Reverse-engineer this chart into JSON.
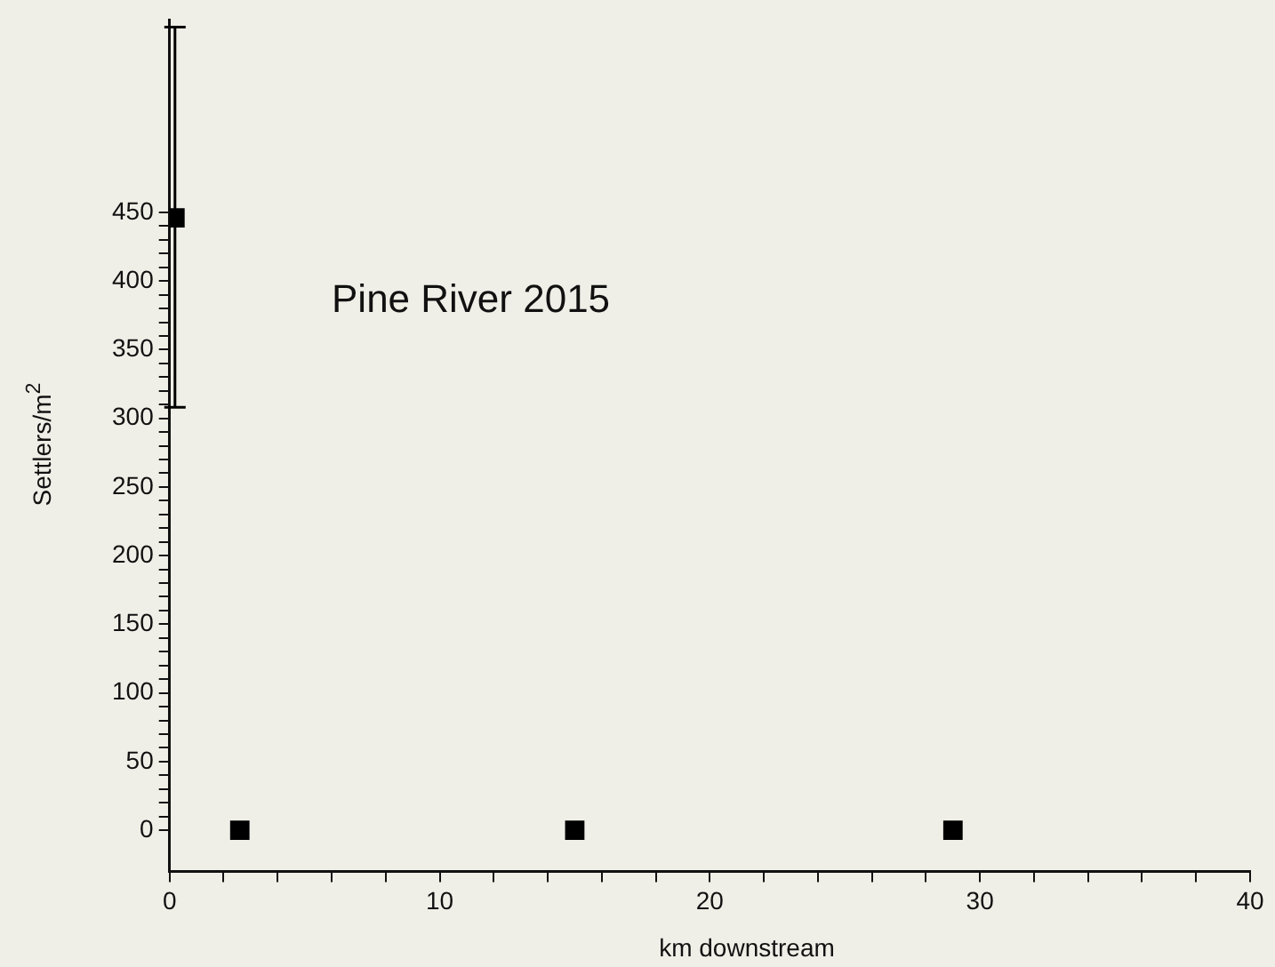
{
  "chart_data": {
    "type": "scatter",
    "xlabel": "km downstream",
    "ylabel": "Settlers/m$^{2}$",
    "annotations": [
      "Pine River 2015"
    ],
    "x": [
      0.2,
      2.6,
      15,
      29
    ],
    "series": [
      {
        "color": "#000000",
        "values": [
          446,
          0,
          0,
          0
        ],
        "errors": [
          [
            308,
            585
          ],
          null,
          null,
          null
        ]
      }
    ],
    "marker": "square",
    "grid": false,
    "legend": false,
    "xlim": [
      0,
      40
    ],
    "xticks": [
      0,
      {
        "value": 2,
        "label": null
      },
      {
        "value": 4,
        "label": null
      },
      {
        "value": 6,
        "label": null
      },
      {
        "value": 8,
        "label": null
      },
      10,
      {
        "value": 12,
        "label": null
      },
      {
        "value": 14,
        "label": null
      },
      {
        "value": 16,
        "label": null
      },
      {
        "value": 18,
        "label": null
      },
      20,
      {
        "value": 22,
        "label": null
      },
      {
        "value": 24,
        "label": null
      },
      {
        "value": 26,
        "label": null
      },
      {
        "value": 28,
        "label": null
      },
      30,
      {
        "value": 32,
        "label": null
      },
      {
        "value": 34,
        "label": null
      },
      {
        "value": 36,
        "label": null
      },
      {
        "value": 38,
        "label": null
      },
      40
    ],
    "ylim": [
      -30,
      590
    ],
    "yticks": [
      0,
      {
        "value": 10,
        "label": null
      },
      {
        "value": 20,
        "label": null
      },
      {
        "value": 30,
        "label": null
      },
      {
        "value": 40,
        "label": null
      },
      50,
      {
        "value": 60,
        "label": null
      },
      {
        "value": 70,
        "label": null
      },
      {
        "value": 80,
        "label": null
      },
      {
        "value": 90,
        "label": null
      },
      100,
      {
        "value": 110,
        "label": null
      },
      {
        "value": 120,
        "label": null
      },
      {
        "value": 130,
        "label": null
      },
      {
        "value": 140,
        "label": null
      },
      150,
      {
        "value": 160,
        "label": null
      },
      {
        "value": 170,
        "label": null
      },
      {
        "value": 180,
        "label": null
      },
      {
        "value": 190,
        "label": null
      },
      200,
      {
        "value": 210,
        "label": null
      },
      {
        "value": 220,
        "label": null
      },
      {
        "value": 230,
        "label": null
      },
      {
        "value": 240,
        "label": null
      },
      250,
      {
        "value": 260,
        "label": null
      },
      {
        "value": 270,
        "label": null
      },
      {
        "value": 280,
        "label": null
      },
      {
        "value": 290,
        "label": null
      },
      300,
      {
        "value": 310,
        "label": null
      },
      {
        "value": 320,
        "label": null
      },
      {
        "value": 330,
        "label": null
      },
      {
        "value": 340,
        "label": null
      },
      350,
      {
        "value": 360,
        "label": null
      },
      {
        "value": 370,
        "label": null
      },
      {
        "value": 380,
        "label": null
      },
      {
        "value": 390,
        "label": null
      },
      400,
      {
        "value": 410,
        "label": null
      },
      {
        "value": 420,
        "label": null
      },
      {
        "value": 430,
        "label": null
      },
      {
        "value": 440,
        "label": null
      },
      450
    ]
  }
}
